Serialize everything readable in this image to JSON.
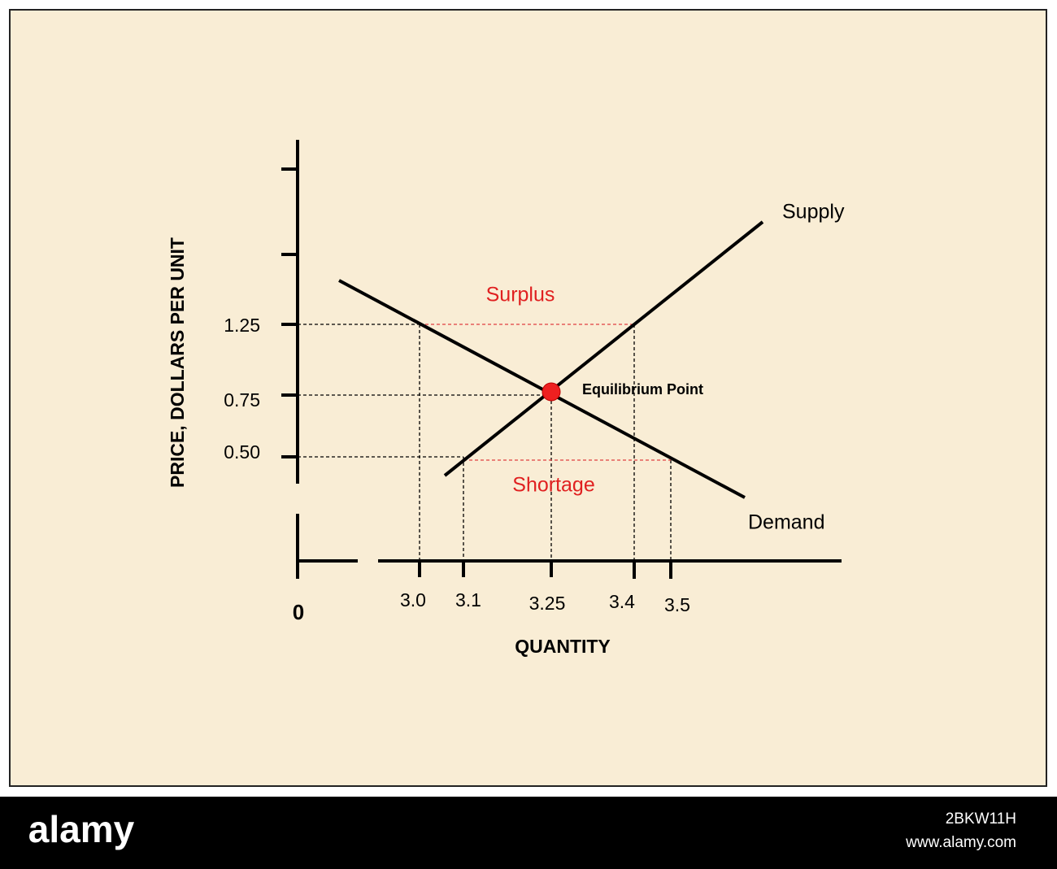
{
  "axes": {
    "y_label": "PRICE, DOLLARS PER UNIT",
    "x_label": "QUANTITY",
    "origin": "0",
    "y_ticks": [
      "1.25",
      "0.75",
      "0.50"
    ],
    "x_ticks": [
      "3.0",
      "3.1",
      "3.25",
      "3.4",
      "3.5"
    ]
  },
  "curves": {
    "supply": "Supply",
    "demand": "Demand"
  },
  "regions": {
    "surplus": "Surplus",
    "shortage": "Shortage"
  },
  "equilibrium": "Equilibrium Point",
  "footer": {
    "brand": "alamy",
    "image_id": "2BKW11H",
    "url": "www.alamy.com"
  }
}
